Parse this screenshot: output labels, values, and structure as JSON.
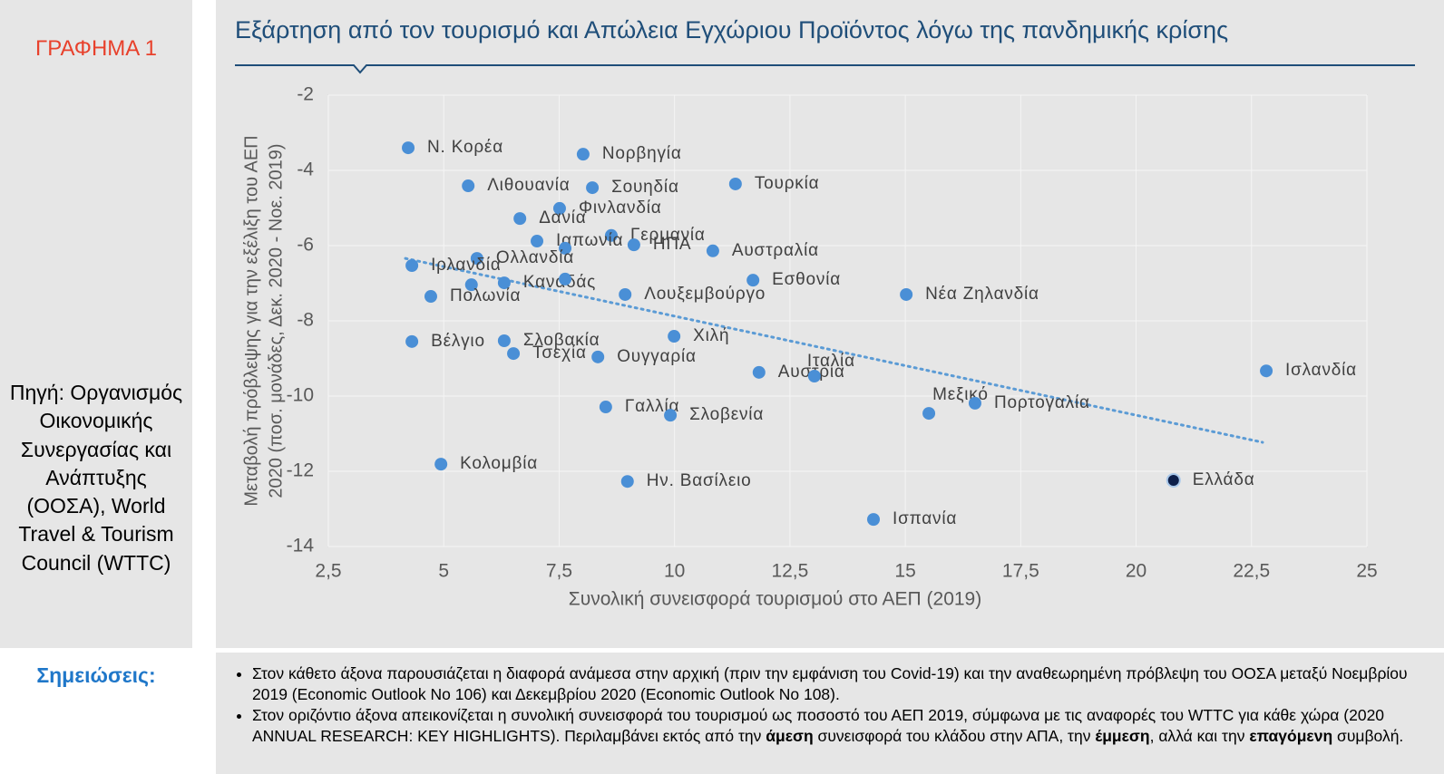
{
  "side_label": "ΓΡΑΦΗΜΑ 1",
  "source": "Πηγή: Οργανισμός Οικονομικής Συνεργασίας και Ανάπτυξης (ΟΟΣΑ), World Travel & Tourism Council (WTTC)",
  "notes_title": "Σημειώσεις:",
  "notes": [
    [
      "Στον κάθετο άξονα παρουσιάζεται η διαφορά ανάμεσα στην αρχική (πριν την εμφάνιση του Covid-19) και την αναθεωρημένη πρόβλεψη του ΟΟΣΑ μεταξύ Νοεμβρίου 2019 (Economic Outlook No 106) και Δεκεμβρίου 2020 (Economic Outlook No 108)."
    ],
    [
      "Στον οριζόντιο άξονα απεικονίζεται η συνολική συνεισφορά του τουρισμού ως ποσοστό του ΑΕΠ 2019, σύμφωνα με τις αναφορές του WTTC για κάθε χώρα (2020 ANNUAL RESEARCH: KEY HIGHLIGHTS). Περιλαμβάνει εκτός από την ",
      "άμεση",
      " συνεισφορά του κλάδου στην ΑΠΑ, την ",
      "έμμεση",
      ", αλλά και την ",
      "επαγόμενη",
      " συμβολή."
    ]
  ],
  "chart_data": {
    "type": "scatter",
    "title": "Εξάρτηση από τον τουρισμό και Απώλεια Εγχώριου Προϊόντος λόγω της πανδημικής κρίσης",
    "x_label": "Συνολική συνεισφορά τουρισμού στο ΑΕΠ (2019)",
    "y_label_lines": [
      "Μεταβολή πρόβλεψης για την εξέλιξη του ΑΕΠ",
      "2020 (ποσ. μονάδες, Δεκ. 2020 - Νοε. 2019)"
    ],
    "labels": [
      "Ν. Κορέα",
      "Νορβηγία",
      "Λιθουανία",
      "Σουηδία",
      "Τουρκία",
      "Φινλανδία",
      "Δανία",
      "Γερμανία",
      "Ιαπωνία",
      null,
      "ΗΠΑ",
      "Αυστραλία",
      "Ολλανδία",
      "Ιρλανδία",
      null,
      "Καναδάς",
      null,
      "Εσθονία",
      "Πολωνία",
      "Λουξεμβούργο",
      "Νέα Ζηλανδία",
      "Χιλή",
      "Βέλγιο",
      "Σλοβακία",
      "Τσεχία",
      "Ουγγαρία",
      "Ισλανδία",
      "Αυστρία",
      "Ιταλία",
      "Μεξικό",
      "Πορτογαλία",
      "Γαλλία",
      "Σλοβενία",
      "Κολομβία",
      "Ην. Βασίλειο",
      "Ελλάδα",
      "Ισπανία"
    ],
    "x": [
      4.23,
      8.02,
      5.53,
      8.22,
      11.32,
      7.51,
      6.65,
      8.63,
      7.02,
      7.63,
      9.12,
      10.83,
      5.72,
      4.31,
      5.6,
      6.31,
      7.63,
      11.7,
      4.72,
      8.93,
      15.02,
      9.99,
      4.31,
      6.31,
      6.51,
      8.34,
      22.82,
      11.83,
      13.03,
      15.51,
      16.51,
      8.51,
      9.91,
      4.94,
      8.98,
      20.81,
      14.31
    ],
    "values": [
      -3.4,
      -3.57,
      -4.41,
      -4.46,
      -4.36,
      -5.01,
      -5.28,
      -5.73,
      -5.88,
      -6.07,
      -5.98,
      -6.14,
      -6.34,
      -6.53,
      -7.04,
      -6.99,
      -6.89,
      -6.92,
      -7.35,
      -7.3,
      -7.3,
      -8.41,
      -8.55,
      -8.53,
      -8.87,
      -8.96,
      -9.33,
      -9.37,
      -9.47,
      -10.46,
      -10.19,
      -10.29,
      -10.51,
      -11.81,
      -12.27,
      -12.24,
      -13.28
    ],
    "color": "#4a8fd6",
    "point_colors": [
      "#4a8fd6",
      "#4a8fd6",
      "#4a8fd6",
      "#4a8fd6",
      "#4a8fd6",
      "#4a8fd6",
      "#4a8fd6",
      "#4a8fd6",
      "#4a8fd6",
      "#4a8fd6",
      "#4a8fd6",
      "#4a8fd6",
      "#4a8fd6",
      "#4a8fd6",
      "#4a8fd6",
      "#4a8fd6",
      "#4a8fd6",
      "#4a8fd6",
      "#4a8fd6",
      "#4a8fd6",
      "#4a8fd6",
      "#4a8fd6",
      "#4a8fd6",
      "#4a8fd6",
      "#4a8fd6",
      "#4a8fd6",
      "#4a8fd6",
      "#4a8fd6",
      "#4a8fd6",
      "#4a8fd6",
      "#4a8fd6",
      "#4a8fd6",
      "#4a8fd6",
      "#4a8fd6",
      "#4a8fd6",
      "#0d1f4a",
      "#4a8fd6"
    ],
    "trendline": {
      "x": [
        4.17,
        22.74
      ],
      "y": [
        -6.34,
        -11.23
      ],
      "color": "#5b9bd5"
    },
    "xlim": [
      2.5,
      25
    ],
    "xticks": [
      {
        "value": 2.5,
        "label": "2,5"
      },
      5,
      {
        "value": 7.5,
        "label": "7,5"
      },
      10,
      {
        "value": 12.5,
        "label": "12,5"
      },
      15,
      {
        "value": 17.5,
        "label": "17,5"
      },
      20,
      {
        "value": 22.5,
        "label": "22,5"
      },
      25
    ],
    "ylim": [
      -14,
      -2
    ],
    "yticks": [
      -2,
      -4,
      -6,
      -8,
      -10,
      -12,
      -14
    ],
    "grid": true
  }
}
